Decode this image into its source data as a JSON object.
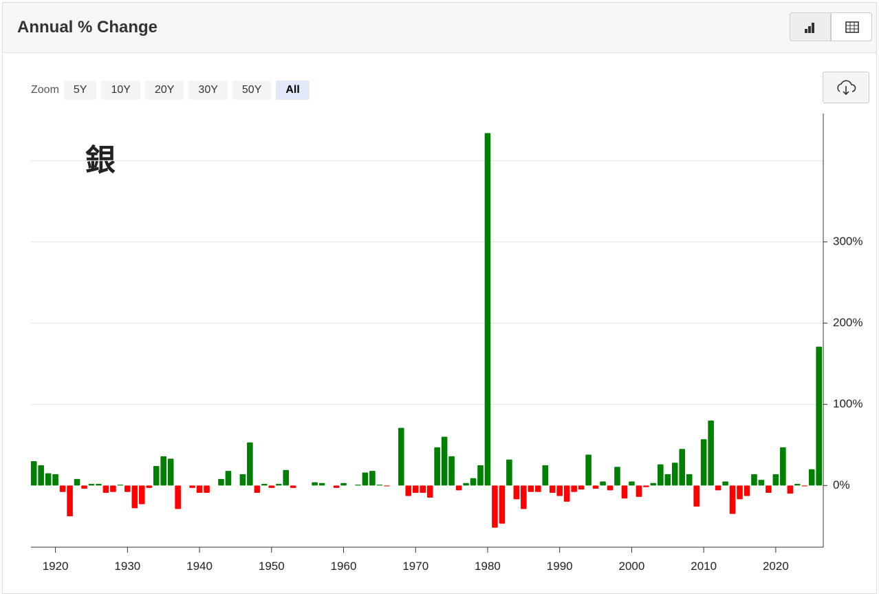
{
  "header": {
    "title": "Annual % Change"
  },
  "zoom": {
    "label": "Zoom",
    "options": [
      "5Y",
      "10Y",
      "20Y",
      "30Y",
      "50Y",
      "All"
    ],
    "selected": "All"
  },
  "chart_data": {
    "type": "bar",
    "annotation": "銀",
    "x": [
      1917,
      1918,
      1919,
      1920,
      1921,
      1922,
      1923,
      1924,
      1925,
      1926,
      1927,
      1928,
      1929,
      1930,
      1931,
      1932,
      1933,
      1934,
      1935,
      1936,
      1937,
      1938,
      1939,
      1940,
      1941,
      1942,
      1943,
      1944,
      1945,
      1946,
      1947,
      1948,
      1949,
      1950,
      1951,
      1952,
      1953,
      1954,
      1955,
      1956,
      1957,
      1958,
      1959,
      1960,
      1961,
      1962,
      1963,
      1964,
      1965,
      1966,
      1967,
      1968,
      1969,
      1970,
      1971,
      1972,
      1973,
      1974,
      1975,
      1976,
      1977,
      1978,
      1979,
      1980,
      1981,
      1982,
      1983,
      1984,
      1985,
      1986,
      1987,
      1988,
      1989,
      1990,
      1991,
      1992,
      1993,
      1994,
      1995,
      1996,
      1997,
      1998,
      1999,
      2000,
      2001,
      2002,
      2003,
      2004,
      2005,
      2006,
      2007,
      2008,
      2009,
      2010,
      2011,
      2012,
      2013,
      2014,
      2015,
      2016,
      2017,
      2018,
      2019,
      2020,
      2021,
      2022,
      2023,
      2024,
      2025,
      2026
    ],
    "values": [
      30,
      25,
      15,
      14,
      -8,
      -38,
      8,
      -4,
      2,
      2,
      -9,
      -8,
      1,
      -8,
      -28,
      -23,
      -3,
      24,
      36,
      33,
      -29,
      0,
      -3,
      -9,
      -9,
      0,
      8,
      18,
      0,
      14,
      53,
      -9,
      2,
      -3,
      2,
      19,
      -3,
      0,
      0,
      4,
      3,
      0,
      -3,
      3,
      0,
      1,
      16,
      18,
      1,
      -1,
      0,
      71,
      -13,
      -9,
      -9,
      -15,
      47,
      60,
      36,
      -6,
      3,
      9,
      25,
      434,
      -52,
      -47,
      32,
      -17,
      -29,
      -8,
      -8,
      25,
      -9,
      -13,
      -20,
      -8,
      -5,
      38,
      -4,
      5,
      -6,
      23,
      -16,
      5,
      -14,
      -2,
      3,
      26,
      14,
      28,
      45,
      14,
      -26,
      57,
      80,
      -6,
      5,
      -35,
      -17,
      -13,
      14,
      7,
      -9,
      14,
      47,
      -10,
      2,
      -1,
      20,
      171
    ],
    "positive_color": "#008000",
    "negative_color": "#ff0000",
    "xlim": [
      1916.6,
      2026.6
    ],
    "xticks": [
      1920,
      1930,
      1940,
      1950,
      1960,
      1970,
      1980,
      1990,
      2000,
      2010,
      2020
    ],
    "ylim": [
      -76,
      458
    ],
    "yticks": [
      {
        "value": 0,
        "label": "0%"
      },
      {
        "value": 100,
        "label": "100%"
      },
      {
        "value": 200,
        "label": "200%"
      },
      {
        "value": 300,
        "label": "300%"
      }
    ],
    "ygrid": [
      100,
      200,
      300,
      400
    ]
  }
}
